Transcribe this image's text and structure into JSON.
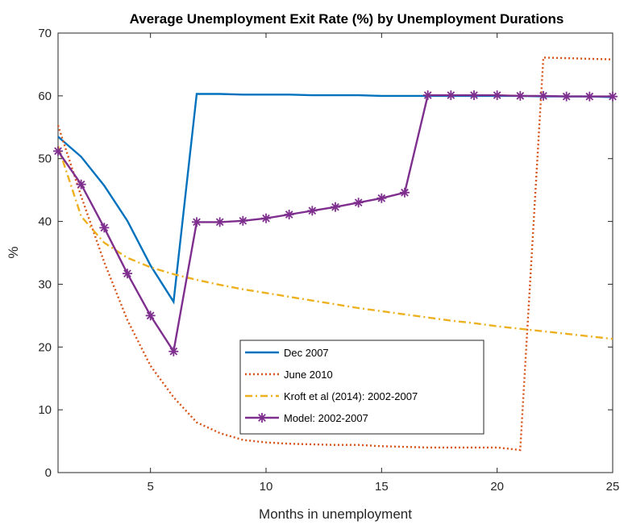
{
  "chart_data": {
    "type": "line",
    "title": "Average Unemployment Exit Rate (%) by Unemployment Durations",
    "xlabel": "Months in unemployment",
    "ylabel": "%",
    "xlim": [
      1,
      25
    ],
    "ylim": [
      0,
      70
    ],
    "xticks": [
      5,
      10,
      15,
      20,
      25
    ],
    "yticks": [
      0,
      10,
      20,
      30,
      40,
      50,
      60,
      70
    ],
    "grid": false,
    "legend_position": "bottom-center",
    "series": [
      {
        "name": "Dec 2007",
        "color": "#0072BD",
        "style": "solid",
        "marker": "none",
        "x": [
          1,
          2,
          3,
          4,
          5,
          6,
          7,
          8,
          9,
          10,
          11,
          12,
          13,
          14,
          15,
          16,
          17,
          18,
          19,
          20,
          21,
          22,
          23,
          24,
          25
        ],
        "y": [
          53.5,
          50.3,
          45.7,
          40.1,
          33.0,
          27.2,
          60.3,
          60.3,
          60.2,
          60.2,
          60.2,
          60.1,
          60.1,
          60.1,
          60.0,
          60.0,
          60.0,
          60.0,
          60.0,
          60.0,
          60.0,
          59.9,
          59.9,
          59.9,
          59.8
        ]
      },
      {
        "name": "June 2010",
        "color": "#D95319",
        "style": "dotted",
        "marker": "none",
        "x": [
          1,
          2,
          3,
          4,
          5,
          6,
          7,
          8,
          9,
          10,
          11,
          12,
          13,
          14,
          15,
          16,
          17,
          18,
          19,
          20,
          21,
          22,
          23,
          24,
          25
        ],
        "y": [
          55.3,
          44.0,
          33.5,
          24.3,
          17.0,
          12.0,
          8.0,
          6.3,
          5.2,
          4.8,
          4.6,
          4.5,
          4.4,
          4.4,
          4.2,
          4.1,
          4.0,
          4.0,
          4.0,
          4.0,
          3.6,
          66.1,
          66.0,
          65.9,
          65.8
        ]
      },
      {
        "name": "Kroft et al (2014): 2002-2007",
        "color": "#EDB120",
        "style": "dashdot",
        "marker": "none",
        "x": [
          1,
          2,
          3,
          4,
          5,
          6,
          7,
          8,
          9,
          10,
          11,
          12,
          13,
          14,
          15,
          16,
          17,
          18,
          19,
          20,
          21,
          22,
          23,
          24,
          25
        ],
        "y": [
          52.0,
          40.8,
          36.6,
          34.2,
          32.7,
          31.6,
          30.7,
          29.9,
          29.2,
          28.6,
          28.0,
          27.4,
          26.8,
          26.2,
          25.7,
          25.2,
          24.7,
          24.2,
          23.8,
          23.3,
          22.9,
          22.5,
          22.1,
          21.7,
          21.3
        ]
      },
      {
        "name": "Model: 2002-2007",
        "color": "#7E2F8E",
        "style": "solid",
        "marker": "asterisk",
        "x": [
          1,
          2,
          3,
          4,
          5,
          6,
          7,
          8,
          9,
          10,
          11,
          12,
          13,
          14,
          15,
          16,
          17,
          18,
          19,
          20,
          21,
          22,
          23,
          24,
          25
        ],
        "y": [
          51.2,
          45.9,
          39.0,
          31.7,
          25.0,
          19.3,
          39.9,
          39.9,
          40.1,
          40.5,
          41.1,
          41.7,
          42.3,
          43.0,
          43.7,
          44.6,
          60.1,
          60.1,
          60.1,
          60.1,
          60.0,
          60.0,
          59.9,
          59.9,
          59.9
        ]
      }
    ]
  }
}
